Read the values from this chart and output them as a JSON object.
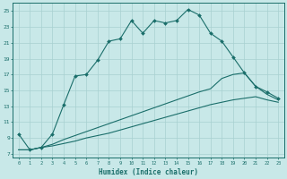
{
  "xlabel": "Humidex (Indice chaleur)",
  "bg_color": "#c8e8e8",
  "line_color": "#1a6e6a",
  "grid_color": "#a8d0d0",
  "xlim": [
    -0.5,
    23.5
  ],
  "ylim": [
    6.5,
    26.0
  ],
  "xticks": [
    0,
    1,
    2,
    3,
    4,
    5,
    6,
    7,
    8,
    9,
    10,
    11,
    12,
    13,
    14,
    15,
    16,
    17,
    18,
    19,
    20,
    21,
    22,
    23
  ],
  "yticks": [
    7,
    9,
    11,
    13,
    15,
    17,
    19,
    21,
    23,
    25
  ],
  "line1_x": [
    0,
    1,
    2,
    3,
    4,
    5,
    6,
    7,
    8,
    9,
    10,
    11,
    12,
    13,
    14,
    15,
    16,
    17,
    18,
    19,
    20,
    21,
    22,
    23
  ],
  "line1_y": [
    9.5,
    7.5,
    7.8,
    9.5,
    13.2,
    16.8,
    17.0,
    18.8,
    21.2,
    21.5,
    23.8,
    22.2,
    23.8,
    23.5,
    23.8,
    25.2,
    24.5,
    22.2,
    21.2,
    19.2,
    17.2,
    15.5,
    14.8,
    14.0
  ],
  "line2_x": [
    0,
    1,
    2,
    3,
    4,
    5,
    6,
    7,
    8,
    9,
    10,
    11,
    12,
    13,
    14,
    15,
    16,
    17,
    18,
    19,
    20,
    21,
    22,
    23
  ],
  "line2_y": [
    7.5,
    7.5,
    7.8,
    8.2,
    8.8,
    9.3,
    9.8,
    10.3,
    10.8,
    11.3,
    11.8,
    12.3,
    12.8,
    13.3,
    13.8,
    14.3,
    14.8,
    15.2,
    16.5,
    17.0,
    17.2,
    15.5,
    14.5,
    13.8
  ],
  "line3_x": [
    0,
    1,
    2,
    3,
    4,
    5,
    6,
    7,
    8,
    9,
    10,
    11,
    12,
    13,
    14,
    15,
    16,
    17,
    18,
    19,
    20,
    21,
    22,
    23
  ],
  "line3_y": [
    7.5,
    7.5,
    7.8,
    8.0,
    8.3,
    8.6,
    9.0,
    9.3,
    9.6,
    10.0,
    10.4,
    10.8,
    11.2,
    11.6,
    12.0,
    12.4,
    12.8,
    13.2,
    13.5,
    13.8,
    14.0,
    14.2,
    13.8,
    13.5
  ]
}
